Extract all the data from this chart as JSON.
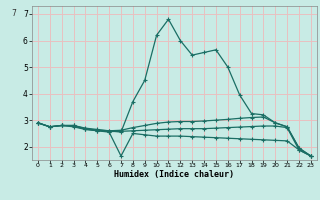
{
  "xlabel": "Humidex (Indice chaleur)",
  "xlim": [
    -0.5,
    23.5
  ],
  "ylim": [
    1.5,
    7.3
  ],
  "xticks": [
    0,
    1,
    2,
    3,
    4,
    5,
    6,
    7,
    8,
    9,
    10,
    11,
    12,
    13,
    14,
    15,
    16,
    17,
    18,
    19,
    20,
    21,
    22,
    23
  ],
  "yticks": [
    2,
    3,
    4,
    5,
    6,
    7
  ],
  "background_color": "#c8ebe5",
  "grid_color": "#e8c0c0",
  "line_color": "#1a6e64",
  "line1_x": [
    0,
    1,
    2,
    3,
    4,
    5,
    6,
    7,
    8,
    9,
    10,
    11,
    12,
    13,
    14,
    15,
    16,
    17,
    18,
    19,
    20,
    21,
    22,
    23
  ],
  "line1_y": [
    2.9,
    2.75,
    2.8,
    2.8,
    2.7,
    2.65,
    2.6,
    2.55,
    3.7,
    4.5,
    6.2,
    6.8,
    6.0,
    5.45,
    5.55,
    5.65,
    5.0,
    3.95,
    3.25,
    3.2,
    2.9,
    2.75,
    1.95,
    1.65
  ],
  "line2_x": [
    0,
    1,
    2,
    3,
    4,
    5,
    6,
    7,
    8,
    9,
    10,
    11,
    12,
    13,
    14,
    15,
    16,
    17,
    18,
    19,
    20,
    21,
    22,
    23
  ],
  "line2_y": [
    2.9,
    2.75,
    2.8,
    2.75,
    2.65,
    2.6,
    2.55,
    1.65,
    2.5,
    2.45,
    2.4,
    2.4,
    2.4,
    2.38,
    2.36,
    2.34,
    2.32,
    2.3,
    2.28,
    2.26,
    2.24,
    2.22,
    1.88,
    1.65
  ],
  "line3_x": [
    0,
    1,
    2,
    3,
    4,
    5,
    6,
    7,
    8,
    9,
    10,
    11,
    12,
    13,
    14,
    15,
    16,
    17,
    18,
    19,
    20,
    21,
    22,
    23
  ],
  "line3_y": [
    2.9,
    2.75,
    2.8,
    2.8,
    2.68,
    2.62,
    2.6,
    2.62,
    2.72,
    2.8,
    2.88,
    2.93,
    2.95,
    2.95,
    2.97,
    3.0,
    3.03,
    3.07,
    3.1,
    3.12,
    2.9,
    2.75,
    1.95,
    1.65
  ],
  "line4_x": [
    0,
    1,
    2,
    3,
    4,
    5,
    6,
    7,
    8,
    9,
    10,
    11,
    12,
    13,
    14,
    15,
    16,
    17,
    18,
    19,
    20,
    21,
    22,
    23
  ],
  "line4_y": [
    2.9,
    2.75,
    2.8,
    2.78,
    2.66,
    2.61,
    2.57,
    2.58,
    2.6,
    2.62,
    2.64,
    2.66,
    2.68,
    2.68,
    2.68,
    2.7,
    2.72,
    2.74,
    2.76,
    2.78,
    2.78,
    2.72,
    1.88,
    1.65
  ]
}
